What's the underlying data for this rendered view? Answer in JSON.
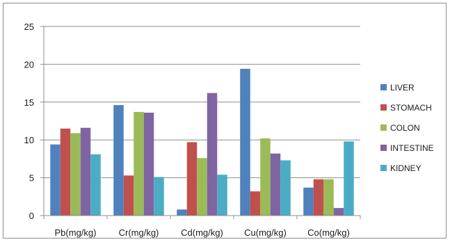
{
  "chart_data": {
    "type": "bar",
    "title": "",
    "xlabel": "",
    "ylabel": "",
    "ylim": [
      0,
      25
    ],
    "yticks": [
      "0",
      "5",
      "10",
      "15",
      "20",
      "25"
    ],
    "grid": true,
    "legend_position": "right",
    "categories": [
      "Pb(mg/kg)",
      "Cr(mg/kg)",
      "Cd(mg/kg)",
      "Cu(mg/kg)",
      "Co(mg/kg)"
    ],
    "series": [
      {
        "name": "LIVER",
        "color": "#4f81bd",
        "values": [
          9.4,
          14.6,
          0.8,
          19.4,
          3.7
        ]
      },
      {
        "name": "STOMACH",
        "color": "#c0504d",
        "values": [
          11.5,
          5.3,
          9.7,
          3.2,
          4.8
        ]
      },
      {
        "name": "COLON",
        "color": "#9bbb59",
        "values": [
          10.9,
          13.7,
          7.6,
          10.2,
          4.8
        ]
      },
      {
        "name": "INTESTINE",
        "color": "#8064a2",
        "values": [
          11.6,
          13.6,
          16.2,
          8.2,
          1.0
        ]
      },
      {
        "name": "KIDNEY",
        "color": "#4bacc6",
        "values": [
          8.1,
          5.1,
          5.4,
          7.3,
          9.8
        ]
      }
    ]
  }
}
